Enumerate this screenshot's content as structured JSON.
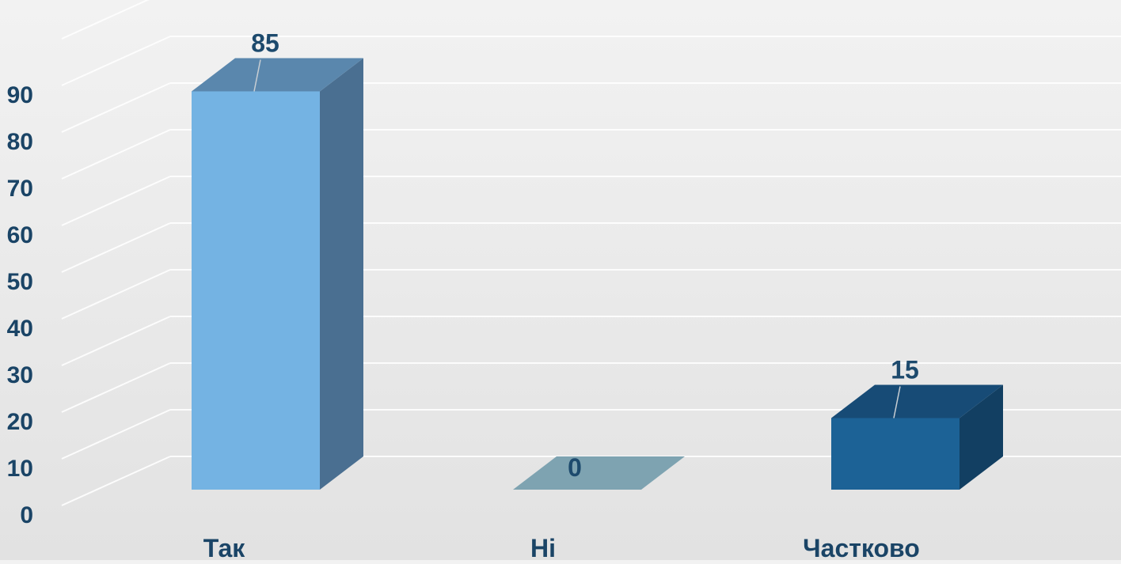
{
  "chart_data": {
    "type": "bar",
    "categories": [
      "Так",
      "Ні",
      "Частково"
    ],
    "values": [
      85,
      0,
      15
    ],
    "data_labels": [
      "85",
      "0",
      "15"
    ],
    "ylim": [
      0,
      90
    ],
    "yticks": [
      "0",
      "10",
      "20",
      "30",
      "40",
      "50",
      "60",
      "70",
      "80",
      "90"
    ],
    "grid": true,
    "bar_colors": [
      {
        "front": "#74b3e3",
        "top": "#5a87ad",
        "side": "#4a6f91"
      },
      {
        "front": "#7ea3b1",
        "top": "#7ea3b1",
        "side": "#6b8d9a"
      },
      {
        "front": "#1c6296",
        "top": "#174b76",
        "side": "#123f62"
      }
    ],
    "label_color": "#1d4a6d",
    "axis_text_color": "#1a4466",
    "gridline_color": "#ffffff"
  }
}
